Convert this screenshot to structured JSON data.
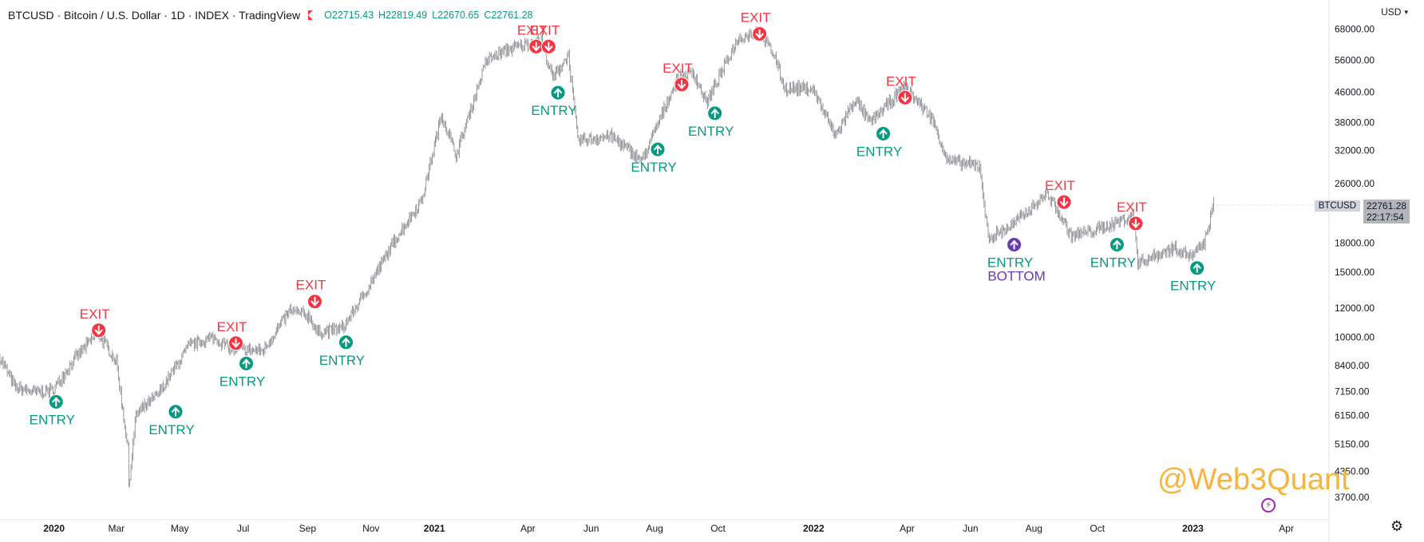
{
  "header": {
    "title": "BTCUSD · Bitcoin / U.S. Dollar · 1D · INDEX · TradingView",
    "ohlc": [
      {
        "k": "O",
        "v": "22715.43"
      },
      {
        "k": "H",
        "v": "22819.49"
      },
      {
        "k": "L",
        "v": "22670.65"
      },
      {
        "k": "C",
        "v": "22761.28"
      }
    ]
  },
  "currency": "USD",
  "last_price": {
    "symbol": "BTCUSD",
    "value": "22761.28",
    "countdown": "22:17:54"
  },
  "watermark": "@Web3Quant",
  "colors": {
    "entry": "#089981",
    "exit": "#f23645",
    "bottom": "#673ab7",
    "candle": "#131722",
    "axis": "#131722",
    "watermark": "#f9b43f",
    "flag": "#f23645"
  },
  "chart_data": {
    "type": "line",
    "title": "BTCUSD · Bitcoin / U.S. Dollar · 1D · INDEX · TradingView",
    "xlabel": "",
    "ylabel": "",
    "y_scale": "log",
    "ylim": [
      3400,
      72000
    ],
    "xlim": [
      "2019-11-10",
      "2023-05-12"
    ],
    "grid": false,
    "y_ticks": [
      68000,
      56000,
      46000,
      38000,
      32000,
      26000,
      18000,
      15000,
      12000,
      10000,
      8400,
      7150,
      6150,
      5150,
      4350,
      3700
    ],
    "y_tick_labels": [
      "68000.00",
      "56000.00",
      "46000.00",
      "38000.00",
      "32000.00",
      "26000.00",
      "18000.00",
      "15000.00",
      "12000.00",
      "10000.00",
      "8400.00",
      "7150.00",
      "6150.00",
      "5150.00",
      "4350.00",
      "3700.00"
    ],
    "x_ticks": [
      {
        "label": "2020",
        "date": "2020-01-01"
      },
      {
        "label": "Mar",
        "date": "2020-03-01"
      },
      {
        "label": "May",
        "date": "2020-05-01"
      },
      {
        "label": "Jul",
        "date": "2020-07-01"
      },
      {
        "label": "Sep",
        "date": "2020-09-01"
      },
      {
        "label": "Nov",
        "date": "2020-11-01"
      },
      {
        "label": "2021",
        "date": "2021-01-01"
      },
      {
        "label": "Apr",
        "date": "2021-04-01"
      },
      {
        "label": "Jun",
        "date": "2021-06-01"
      },
      {
        "label": "Aug",
        "date": "2021-08-01"
      },
      {
        "label": "Oct",
        "date": "2021-10-01"
      },
      {
        "label": "2022",
        "date": "2022-01-01"
      },
      {
        "label": "Apr",
        "date": "2022-04-01"
      },
      {
        "label": "Jun",
        "date": "2022-06-01"
      },
      {
        "label": "Aug",
        "date": "2022-08-01"
      },
      {
        "label": "Oct",
        "date": "2022-10-01"
      },
      {
        "label": "2023",
        "date": "2023-01-01"
      },
      {
        "label": "Apr",
        "date": "2023-04-01"
      }
    ],
    "series": [
      {
        "values": [
          [
            "2019-11-10",
            8800
          ],
          [
            "2019-11-25",
            7300
          ],
          [
            "2019-12-15",
            7100
          ],
          [
            "2019-12-31",
            7200
          ],
          [
            "2020-01-20",
            8700
          ],
          [
            "2020-02-12",
            10300
          ],
          [
            "2020-03-01",
            8600
          ],
          [
            "2020-03-12",
            5000
          ],
          [
            "2020-03-13",
            4000
          ],
          [
            "2020-03-20",
            6200
          ],
          [
            "2020-04-10",
            7000
          ],
          [
            "2020-05-10",
            9500
          ],
          [
            "2020-06-02",
            10000
          ],
          [
            "2020-06-20",
            9300
          ],
          [
            "2020-07-20",
            9200
          ],
          [
            "2020-08-15",
            11800
          ],
          [
            "2020-09-03",
            11400
          ],
          [
            "2020-09-10",
            10300
          ],
          [
            "2020-10-05",
            10600
          ],
          [
            "2020-10-25",
            13000
          ],
          [
            "2020-11-25",
            18500
          ],
          [
            "2020-12-20",
            23500
          ],
          [
            "2021-01-08",
            40000
          ],
          [
            "2021-01-22",
            31000
          ],
          [
            "2021-02-20",
            56000
          ],
          [
            "2021-03-13",
            60000
          ],
          [
            "2021-04-14",
            63500
          ],
          [
            "2021-04-25",
            50000
          ],
          [
            "2021-05-10",
            58000
          ],
          [
            "2021-05-19",
            34000
          ],
          [
            "2021-06-20",
            35000
          ],
          [
            "2021-07-20",
            30000
          ],
          [
            "2021-08-22",
            49500
          ],
          [
            "2021-09-07",
            52000
          ],
          [
            "2021-09-20",
            43000
          ],
          [
            "2021-10-20",
            64000
          ],
          [
            "2021-11-10",
            67500
          ],
          [
            "2021-11-25",
            57000
          ],
          [
            "2021-12-04",
            47000
          ],
          [
            "2021-12-31",
            47000
          ],
          [
            "2022-01-22",
            35000
          ],
          [
            "2022-02-10",
            44000
          ],
          [
            "2022-02-24",
            38000
          ],
          [
            "2022-03-30",
            47500
          ],
          [
            "2022-04-25",
            39000
          ],
          [
            "2022-05-10",
            30000
          ],
          [
            "2022-06-10",
            29000
          ],
          [
            "2022-06-18",
            18500
          ],
          [
            "2022-07-10",
            20000
          ],
          [
            "2022-08-14",
            24500
          ],
          [
            "2022-09-06",
            18800
          ],
          [
            "2022-09-30",
            19500
          ],
          [
            "2022-11-05",
            21300
          ],
          [
            "2022-11-09",
            15900
          ],
          [
            "2022-12-15",
            17500
          ],
          [
            "2022-12-31",
            16500
          ],
          [
            "2023-01-12",
            18000
          ],
          [
            "2023-01-21",
            22761.28
          ]
        ]
      }
    ],
    "annotations": [
      {
        "type": "entry",
        "label": "ENTRY",
        "date": "2020-01-03",
        "price": 6700
      },
      {
        "type": "exit",
        "label": "EXIT",
        "date": "2020-02-13",
        "price": 10450
      },
      {
        "type": "entry",
        "label": "ENTRY",
        "date": "2020-04-27",
        "price": 6300
      },
      {
        "type": "exit",
        "label": "EXIT",
        "date": "2020-06-24",
        "price": 9650
      },
      {
        "type": "entry",
        "label": "ENTRY",
        "date": "2020-07-04",
        "price": 8500
      },
      {
        "type": "exit",
        "label": "EXIT",
        "date": "2020-09-08",
        "price": 12500
      },
      {
        "type": "entry",
        "label": "ENTRY",
        "date": "2020-10-08",
        "price": 9700
      },
      {
        "type": "exit",
        "label": "EXIT",
        "date": "2021-04-09",
        "price": 61000
      },
      {
        "type": "exit",
        "label": "EXIT",
        "date": "2021-04-21",
        "price": 61000
      },
      {
        "type": "entry",
        "label": "ENTRY",
        "date": "2021-04-30",
        "price": 45800
      },
      {
        "type": "entry",
        "label": "ENTRY",
        "date": "2021-08-04",
        "price": 32200
      },
      {
        "type": "exit",
        "label": "EXIT",
        "date": "2021-08-27",
        "price": 48200
      },
      {
        "type": "entry",
        "label": "ENTRY",
        "date": "2021-09-28",
        "price": 40300
      },
      {
        "type": "exit",
        "label": "EXIT",
        "date": "2021-11-10",
        "price": 66000
      },
      {
        "type": "entry",
        "label": "ENTRY",
        "date": "2022-03-09",
        "price": 35500
      },
      {
        "type": "exit",
        "label": "EXIT",
        "date": "2022-03-30",
        "price": 44400
      },
      {
        "type": "entry",
        "label": "ENTRY",
        "label2": "BOTTOM",
        "date": "2022-07-13",
        "price": 17800
      },
      {
        "type": "exit",
        "label": "EXIT",
        "date": "2022-08-30",
        "price": 23200
      },
      {
        "type": "entry",
        "label": "ENTRY",
        "date": "2022-10-20",
        "price": 17800
      },
      {
        "type": "exit",
        "label": "EXIT",
        "date": "2022-11-07",
        "price": 20300
      },
      {
        "type": "entry",
        "label": "ENTRY",
        "date": "2023-01-05",
        "price": 15400
      }
    ]
  }
}
